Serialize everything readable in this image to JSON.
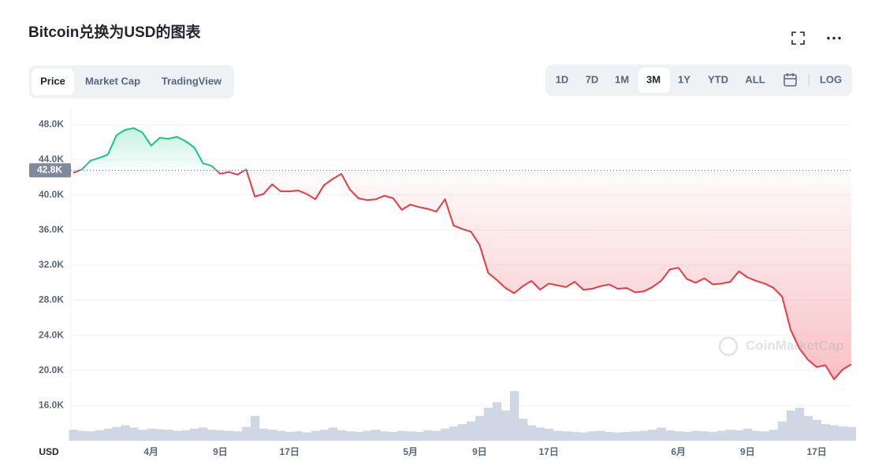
{
  "ui": {
    "title": "Bitcoin兑换为USD的图表",
    "tabs": [
      "Price",
      "Market Cap",
      "TradingView"
    ],
    "ranges": [
      "1D",
      "7D",
      "1M",
      "3M",
      "1Y",
      "YTD",
      "ALL"
    ],
    "log": "LOG",
    "currency": "USD",
    "watermark": "CoinMarketCap"
  },
  "chart_data": {
    "type": "line",
    "categories": [
      null,
      null,
      null,
      null,
      null,
      null,
      null,
      null,
      null,
      "4月",
      null,
      null,
      null,
      null,
      null,
      null,
      null,
      "9日",
      null,
      null,
      null,
      null,
      null,
      null,
      null,
      "17日",
      null,
      null,
      null,
      null,
      null,
      null,
      null,
      null,
      null,
      null,
      null,
      null,
      null,
      "5月",
      null,
      null,
      null,
      null,
      null,
      null,
      null,
      "9日",
      null,
      null,
      null,
      null,
      null,
      null,
      null,
      "17日",
      null,
      null,
      null,
      null,
      null,
      null,
      null,
      null,
      null,
      null,
      null,
      null,
      null,
      null,
      "6月",
      null,
      null,
      null,
      null,
      null,
      null,
      null,
      "9日",
      null,
      null,
      null,
      null,
      null,
      null,
      null,
      "17日",
      null,
      null,
      null,
      null
    ],
    "values": [
      42.5,
      42.9,
      43.9,
      44.2,
      44.6,
      46.8,
      47.4,
      47.6,
      47.1,
      45.6,
      46.5,
      46.4,
      46.6,
      46.1,
      45.4,
      43.6,
      43.3,
      42.4,
      42.6,
      42.3,
      42.9,
      39.8,
      40.1,
      41.2,
      40.4,
      40.4,
      40.5,
      40.1,
      39.5,
      41.1,
      41.8,
      42.4,
      40.6,
      39.6,
      39.4,
      39.5,
      39.9,
      39.6,
      38.3,
      38.9,
      38.6,
      38.4,
      38.1,
      39.5,
      36.5,
      36.1,
      35.8,
      34.3,
      31.1,
      30.3,
      29.4,
      28.8,
      29.6,
      30.2,
      29.2,
      29.9,
      29.7,
      29.5,
      30.1,
      29.2,
      29.3,
      29.6,
      29.8,
      29.3,
      29.4,
      28.9,
      29.0,
      29.5,
      30.2,
      31.5,
      31.7,
      30.4,
      30.0,
      30.5,
      29.8,
      29.9,
      30.1,
      31.3,
      30.6,
      30.2,
      29.9,
      29.4,
      28.4,
      24.6,
      22.5,
      21.2,
      20.4,
      20.6,
      19.0,
      20.1,
      20.7
    ],
    "volume": [
      20,
      18,
      17,
      19,
      22,
      25,
      28,
      24,
      20,
      22,
      21,
      20,
      18,
      19,
      22,
      24,
      20,
      19,
      18,
      17,
      25,
      45,
      22,
      20,
      18,
      16,
      17,
      15,
      18,
      20,
      24,
      19,
      17,
      16,
      18,
      20,
      17,
      16,
      18,
      17,
      16,
      19,
      18,
      22,
      26,
      30,
      35,
      45,
      60,
      70,
      55,
      90,
      40,
      28,
      24,
      22,
      18,
      17,
      16,
      15,
      17,
      18,
      16,
      15,
      16,
      17,
      18,
      20,
      24,
      19,
      17,
      16,
      18,
      17,
      16,
      18,
      20,
      19,
      22,
      18,
      17,
      20,
      35,
      55,
      60,
      45,
      38,
      30,
      28,
      26,
      25
    ],
    "baseline": {
      "value": 42.8,
      "label": "42.8K"
    },
    "up_color": "#16c784",
    "down_color": "#ea3943",
    "volume_color": "#cfd6e4",
    "ylim": [
      12,
      50
    ],
    "yticks": [
      {
        "value": 16,
        "label": "16.0K"
      },
      {
        "value": 20,
        "label": "20.0K"
      },
      {
        "value": 24,
        "label": "24.0K"
      },
      {
        "value": 28,
        "label": "28.0K"
      },
      {
        "value": 32,
        "label": "32.0K"
      },
      {
        "value": 36,
        "label": "36.0K"
      },
      {
        "value": 40,
        "label": "40.0K"
      },
      {
        "value": 44,
        "label": "44.0K"
      },
      {
        "value": 48,
        "label": "48.0K"
      }
    ],
    "grid": true
  }
}
